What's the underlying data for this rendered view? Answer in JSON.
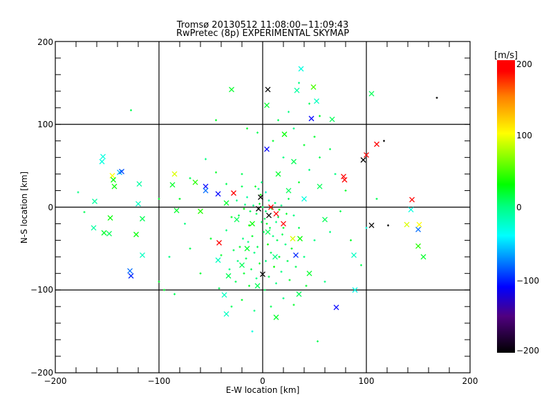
{
  "chart_data": {
    "type": "scatter",
    "title": "Tromsø 20130512 11:08:00−11:09:43",
    "subtitle": "RwPretec (8p) EXPERIMENTAL SKYMAP",
    "xlabel": "E-W location [km]",
    "ylabel": "N-S location [km]",
    "xlim": [
      -200,
      200
    ],
    "ylim": [
      -200,
      200
    ],
    "xticks": [
      "−200",
      "−100",
      "0",
      "100",
      "200"
    ],
    "yticks": [
      "−200",
      "−100",
      "0",
      "100",
      "200"
    ],
    "grid": true,
    "colorbar": {
      "label": "[m/s]",
      "range": [
        -200,
        200
      ],
      "ticks": [
        "200",
        "100",
        "0",
        "−100",
        "−200"
      ],
      "colormap": [
        [
          -200,
          "#000000"
        ],
        [
          -150,
          "#500080"
        ],
        [
          -110,
          "#0000ff"
        ],
        [
          -40,
          "#00ffff"
        ],
        [
          0,
          "#00ff80"
        ],
        [
          30,
          "#00ff00"
        ],
        [
          100,
          "#ffff00"
        ],
        [
          150,
          "#ff8000"
        ],
        [
          185,
          "#ff0000"
        ],
        [
          200,
          "#ff0000"
        ]
      ]
    },
    "series": [
      {
        "name": "crosses",
        "marker": "x",
        "points_xyv": [
          [
            -30,
            142,
            20
          ],
          [
            5,
            142,
            -200
          ],
          [
            37,
            167,
            -30
          ],
          [
            33,
            141,
            -10
          ],
          [
            49,
            145,
            50
          ],
          [
            52,
            128,
            -20
          ],
          [
            4,
            123,
            20
          ],
          [
            47,
            107,
            -110
          ],
          [
            67,
            106,
            10
          ],
          [
            105,
            137,
            10
          ],
          [
            4,
            70,
            -110
          ],
          [
            21,
            88,
            30
          ],
          [
            110,
            76,
            190
          ],
          [
            100,
            63,
            190
          ],
          [
            97,
            57,
            -200
          ],
          [
            78,
            37,
            190
          ],
          [
            79,
            33,
            190
          ],
          [
            -154,
            61,
            -30
          ],
          [
            -155,
            55,
            -30
          ],
          [
            -138,
            42,
            -60
          ],
          [
            -136,
            43,
            -90
          ],
          [
            -145,
            38,
            100
          ],
          [
            -144,
            33,
            30
          ],
          [
            -143,
            25,
            30
          ],
          [
            -119,
            28,
            -10
          ],
          [
            -162,
            7,
            -10
          ],
          [
            -120,
            4,
            -20
          ],
          [
            -85,
            40,
            90
          ],
          [
            -87,
            27,
            20
          ],
          [
            -55,
            25,
            -110
          ],
          [
            -55,
            20,
            -80
          ],
          [
            -43,
            16,
            -110
          ],
          [
            -28,
            17,
            190
          ],
          [
            -83,
            -4,
            20
          ],
          [
            -147,
            -13,
            30
          ],
          [
            -116,
            -14,
            10
          ],
          [
            -163,
            -25,
            -10
          ],
          [
            -153,
            -31,
            20
          ],
          [
            -148,
            -32,
            10
          ],
          [
            -122,
            -33,
            30
          ],
          [
            -116,
            -58,
            -20
          ],
          [
            -128,
            -77,
            -80
          ],
          [
            -127,
            -83,
            -100
          ],
          [
            -42,
            -43,
            190
          ],
          [
            -43,
            -64,
            -20
          ],
          [
            -33,
            -83,
            10
          ],
          [
            13,
            -8,
            190
          ],
          [
            0,
            -81,
            -200
          ],
          [
            29,
            -38,
            90
          ],
          [
            36,
            -38,
            30
          ],
          [
            32,
            -58,
            -100
          ],
          [
            71,
            -121,
            -110
          ],
          [
            89,
            -100,
            -30
          ],
          [
            88,
            -58,
            -20
          ],
          [
            105,
            -22,
            -200
          ],
          [
            139,
            -21,
            90
          ],
          [
            143,
            -3,
            -30
          ],
          [
            144,
            9,
            190
          ],
          [
            150,
            -27,
            -80
          ],
          [
            151,
            -21,
            100
          ],
          [
            150,
            -47,
            40
          ],
          [
            155,
            -60,
            20
          ],
          [
            -37,
            -106,
            -20
          ],
          [
            -35,
            -129,
            -20
          ],
          [
            13,
            -133,
            20
          ],
          [
            35,
            -105,
            10
          ],
          [
            -60,
            -5,
            40
          ],
          [
            -65,
            30,
            40
          ],
          [
            -4,
            -2,
            -200
          ],
          [
            6,
            -10,
            -200
          ],
          [
            -2,
            12,
            -200
          ],
          [
            8,
            0,
            190
          ],
          [
            -10,
            -20,
            30
          ],
          [
            5,
            -30,
            10
          ],
          [
            -15,
            -50,
            20
          ],
          [
            12,
            -60,
            0
          ],
          [
            -20,
            -70,
            10
          ],
          [
            20,
            -20,
            190
          ],
          [
            25,
            20,
            10
          ],
          [
            40,
            10,
            -30
          ],
          [
            55,
            25,
            10
          ],
          [
            60,
            -15,
            10
          ],
          [
            -25,
            -15,
            10
          ],
          [
            -35,
            5,
            20
          ],
          [
            15,
            40,
            20
          ],
          [
            30,
            55,
            10
          ],
          [
            45,
            -80,
            20
          ],
          [
            -5,
            -95,
            10
          ]
        ]
      },
      {
        "name": "dots",
        "marker": "+",
        "points_xyv": [
          [
            -127,
            117,
            10
          ],
          [
            168,
            132,
            -200
          ],
          [
            117,
            80,
            -200
          ],
          [
            121,
            -22,
            -200
          ],
          [
            53,
            -162,
            10
          ],
          [
            -45,
            105,
            20
          ],
          [
            -10,
            -150,
            -30
          ],
          [
            -178,
            18,
            0
          ],
          [
            -172,
            -6,
            10
          ],
          [
            -100,
            10,
            20
          ],
          [
            0,
            0,
            10
          ],
          [
            3,
            -5,
            0
          ],
          [
            -3,
            4,
            20
          ],
          [
            6,
            8,
            -10
          ],
          [
            -6,
            -8,
            10
          ],
          [
            9,
            -2,
            20
          ],
          [
            -9,
            2,
            0
          ],
          [
            2,
            -14,
            10
          ],
          [
            -2,
            15,
            30
          ],
          [
            12,
            5,
            0
          ],
          [
            -12,
            -5,
            10
          ],
          [
            4,
            -20,
            20
          ],
          [
            -4,
            22,
            0
          ],
          [
            15,
            -12,
            10
          ],
          [
            -15,
            12,
            -10
          ],
          [
            7,
            -25,
            10
          ],
          [
            -7,
            25,
            20
          ],
          [
            18,
            2,
            0
          ],
          [
            -18,
            -2,
            30
          ],
          [
            1,
            -30,
            10
          ],
          [
            -1,
            30,
            0
          ],
          [
            20,
            -25,
            20
          ],
          [
            -20,
            25,
            10
          ],
          [
            10,
            -35,
            0
          ],
          [
            -10,
            -35,
            20
          ],
          [
            14,
            -40,
            10
          ],
          [
            -14,
            -42,
            0
          ],
          [
            5,
            -45,
            30
          ],
          [
            -5,
            -48,
            10
          ],
          [
            22,
            -45,
            0
          ],
          [
            -22,
            -48,
            20
          ],
          [
            8,
            -55,
            10
          ],
          [
            -8,
            -55,
            0
          ],
          [
            16,
            -60,
            20
          ],
          [
            -16,
            -62,
            10
          ],
          [
            3,
            -65,
            0
          ],
          [
            -3,
            -68,
            20
          ],
          [
            24,
            -65,
            10
          ],
          [
            -24,
            -65,
            0
          ],
          [
            11,
            -72,
            30
          ],
          [
            -11,
            -75,
            10
          ],
          [
            18,
            -78,
            0
          ],
          [
            -18,
            -80,
            20
          ],
          [
            6,
            -84,
            10
          ],
          [
            -6,
            -86,
            0
          ],
          [
            26,
            -88,
            20
          ],
          [
            -26,
            -90,
            10
          ],
          [
            13,
            -92,
            0
          ],
          [
            -13,
            -95,
            20
          ],
          [
            2,
            -100,
            10
          ],
          [
            30,
            -10,
            0
          ],
          [
            -30,
            -12,
            20
          ],
          [
            35,
            -25,
            10
          ],
          [
            -35,
            -28,
            0
          ],
          [
            28,
            -50,
            20
          ],
          [
            -28,
            -52,
            10
          ],
          [
            40,
            -60,
            0
          ],
          [
            -40,
            -58,
            20
          ],
          [
            32,
            -72,
            10
          ],
          [
            -32,
            -75,
            0
          ],
          [
            42,
            -95,
            20
          ],
          [
            -42,
            -98,
            10
          ],
          [
            20,
            -110,
            0
          ],
          [
            -20,
            -112,
            20
          ],
          [
            8,
            -120,
            10
          ],
          [
            -8,
            -125,
            0
          ],
          [
            30,
            -118,
            20
          ],
          [
            -30,
            -120,
            10
          ],
          [
            50,
            -40,
            0
          ],
          [
            -50,
            -38,
            20
          ],
          [
            25,
            10,
            10
          ],
          [
            -25,
            8,
            0
          ],
          [
            35,
            30,
            20
          ],
          [
            -35,
            28,
            10
          ],
          [
            45,
            45,
            0
          ],
          [
            -45,
            42,
            20
          ],
          [
            55,
            60,
            10
          ],
          [
            -55,
            58,
            0
          ],
          [
            40,
            75,
            20
          ],
          [
            -20,
            40,
            10
          ],
          [
            20,
            60,
            0
          ],
          [
            10,
            80,
            20
          ],
          [
            -5,
            90,
            10
          ],
          [
            30,
            95,
            0
          ],
          [
            50,
            85,
            20
          ],
          [
            65,
            70,
            10
          ],
          [
            70,
            40,
            0
          ],
          [
            80,
            20,
            20
          ],
          [
            75,
            -5,
            10
          ],
          [
            65,
            -30,
            0
          ],
          [
            85,
            -40,
            20
          ],
          [
            95,
            -70,
            10
          ],
          [
            60,
            -90,
            0
          ],
          [
            -60,
            -80,
            20
          ],
          [
            -70,
            -50,
            10
          ],
          [
            -75,
            -20,
            0
          ],
          [
            -80,
            10,
            20
          ],
          [
            -70,
            35,
            10
          ],
          [
            -90,
            -60,
            0
          ],
          [
            -95,
            -100,
            20
          ],
          [
            100,
            -25,
            -30
          ],
          [
            110,
            10,
            10
          ],
          [
            55,
            110,
            20
          ],
          [
            25,
            115,
            0
          ],
          [
            45,
            125,
            10
          ],
          [
            -15,
            95,
            20
          ],
          [
            15,
            105,
            10
          ],
          [
            35,
            150,
            0
          ],
          [
            -85,
            -105,
            10
          ],
          [
            -100,
            -90,
            20
          ],
          [
            16,
            -3,
            30
          ],
          [
            -17,
            3,
            0
          ],
          [
            3,
            18,
            -20
          ],
          [
            -1,
            -18,
            10
          ],
          [
            23,
            -8,
            20
          ],
          [
            -23,
            -10,
            10
          ],
          [
            13,
            -18,
            0
          ],
          [
            -13,
            -22,
            30
          ],
          [
            19,
            -33,
            10
          ],
          [
            -19,
            -38,
            0
          ]
        ]
      }
    ]
  }
}
